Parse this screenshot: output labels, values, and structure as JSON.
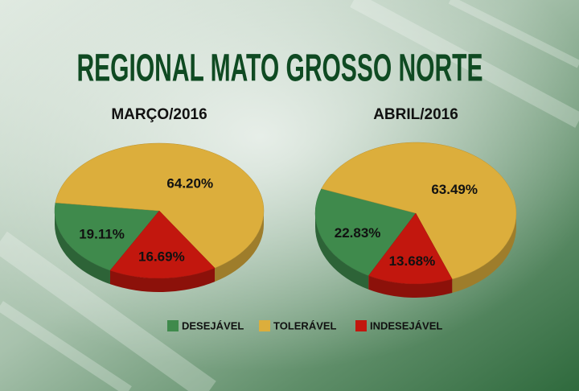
{
  "title": "REGIONAL MATO GROSSO NORTE",
  "chart_data": [
    {
      "type": "pie",
      "title": "MARÇO/2016",
      "categories": [
        "DESEJÁVEL",
        "TOLERÁVEL",
        "INDESEJÁVEL"
      ],
      "values": [
        19.11,
        64.2,
        16.69
      ],
      "value_labels": [
        "19.11%",
        "64.20%",
        "16.69%"
      ],
      "colors": [
        "#3f8a4c",
        "#dcae3c",
        "#c2170e"
      ]
    },
    {
      "type": "pie",
      "title": "ABRIL/2016",
      "categories": [
        "DESEJÁVEL",
        "TOLERÁVEL",
        "INDESEJÁVEL"
      ],
      "values": [
        22.83,
        63.49,
        13.68
      ],
      "value_labels": [
        "22.83%",
        "63.49%",
        "13.68%"
      ],
      "colors": [
        "#3f8a4c",
        "#dcae3c",
        "#c2170e"
      ]
    }
  ]
}
